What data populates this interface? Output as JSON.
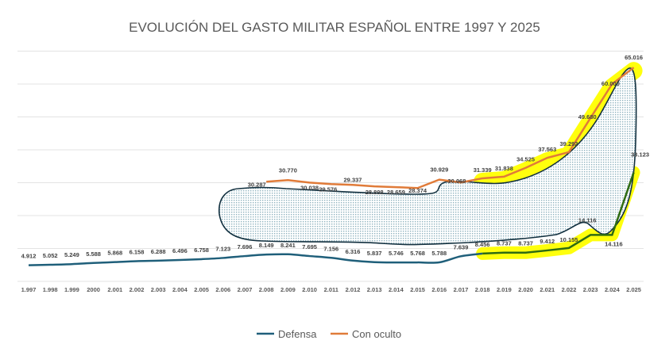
{
  "chart_data": {
    "type": "line",
    "title": "EVOLUCIÓN DEL GASTO MILITAR ESPAÑOL ENTRE 1997 Y 2025",
    "xlabel": "",
    "ylabel": "",
    "ylim": [
      0,
      70000
    ],
    "grid": true,
    "legend_position": "bottom",
    "categories": [
      "1.997",
      "1.998",
      "1.999",
      "2000",
      "2.001",
      "2.002",
      "2.003",
      "2.004",
      "2.005",
      "2.006",
      "2.007",
      "2.008",
      "2.009",
      "2.010",
      "2.011",
      "2.012",
      "2.013",
      "2.014",
      "2.015",
      "2.016",
      "2.017",
      "2.018",
      "2.019",
      "2.020",
      "2.021",
      "2.022",
      "2.023",
      "2.024",
      "2.025"
    ],
    "series": [
      {
        "name": "Defensa",
        "color": "#1f5f7a",
        "highlight_color": "#2e6b12",
        "values": [
          4912,
          5052,
          5249,
          5588,
          5868,
          6158,
          6288,
          6496,
          6758,
          7123,
          7696,
          8149,
          8241,
          7695,
          7156,
          6316,
          5837,
          5746,
          5768,
          5788,
          7639,
          8456,
          8737,
          8737,
          9412,
          10155,
          14116,
          14116,
          33123
        ],
        "labels": [
          "4.912",
          "5.052",
          "5.249",
          "5.588",
          "5.868",
          "6.158",
          "6.288",
          "6.496",
          "6.758",
          "7.123",
          "7.696",
          "8.149",
          "8.241",
          "7.695",
          "7.156",
          "6.316",
          "5.837",
          "5.746",
          "5.768",
          "5.788",
          "7.639",
          "8.456",
          "8.737",
          "8.737",
          "9.412",
          "10.155",
          "14.116",
          "14.116",
          "33.123"
        ]
      },
      {
        "name": "Con oculto",
        "color": "#e07b39",
        "values": [
          null,
          null,
          null,
          null,
          null,
          null,
          null,
          null,
          null,
          null,
          null,
          30287,
          30770,
          30038,
          29576,
          29337,
          28898,
          28659,
          28374,
          30929,
          30068,
          31339,
          31838,
          34525,
          37563,
          39292,
          49680,
          60000,
          65016
        ],
        "labels": [
          null,
          null,
          null,
          null,
          null,
          null,
          null,
          null,
          null,
          null,
          null,
          "30.287",
          "30.770",
          "30.038",
          "29.576",
          "29.337",
          "28.898",
          "28.659",
          "28.374",
          "30.929",
          "30.068",
          "31.339",
          "31.838",
          "34.525",
          "37.563",
          "39.292",
          "49.680",
          "60.000",
          "65.016"
        ]
      }
    ],
    "annotations": {
      "highlight_color": "#ffff00",
      "blob_outline_color": "#12303f",
      "blob_dot_color": "#8fb3bf"
    }
  }
}
